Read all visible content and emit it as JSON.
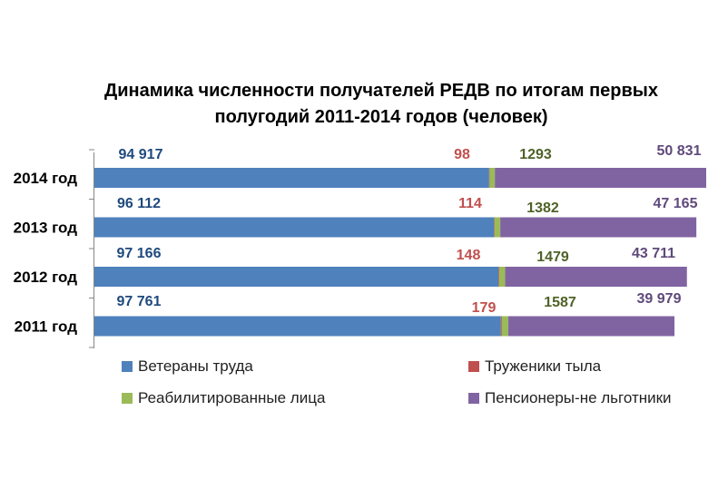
{
  "chart_data": {
    "type": "bar",
    "orientation": "horizontal",
    "stacked": true,
    "title_line1": "Динамика численности получателей РЕДВ  по итогам первых",
    "title_line2": "полугодий 2011-2014 годов  (человек)",
    "categories": [
      "2014 год",
      "2013 год",
      "2012 год",
      "2011 год"
    ],
    "series": [
      {
        "name": "Ветераны труда",
        "color": "#4F81BD",
        "label_color": "#1F497D",
        "labels": [
          "94 917",
          "96 112",
          "97 166",
          "97 761"
        ],
        "values": [
          94917,
          96112,
          97166,
          97761
        ]
      },
      {
        "name": "Труженики тыла",
        "color": "#C0504D",
        "label_color": "#C0504D",
        "labels": [
          "98",
          "114",
          "148",
          "179"
        ],
        "values": [
          98,
          114,
          148,
          179
        ]
      },
      {
        "name": "Реабилитированные лица",
        "color": "#9BBB59",
        "label_color": "#4F6228",
        "labels": [
          "1293",
          "1382",
          "1479",
          "1587"
        ],
        "values": [
          1293,
          1382,
          1479,
          1587
        ]
      },
      {
        "name": "Пенсионеры-не льготники",
        "color": "#8064A2",
        "label_color": "#5F497A",
        "labels": [
          "50 831",
          "47 165",
          "43 711",
          "39 979"
        ],
        "values": [
          50831,
          47165,
          43711,
          39979
        ]
      }
    ],
    "xlim": [
      0,
      147139
    ],
    "grid": false,
    "legend_position": "bottom"
  }
}
